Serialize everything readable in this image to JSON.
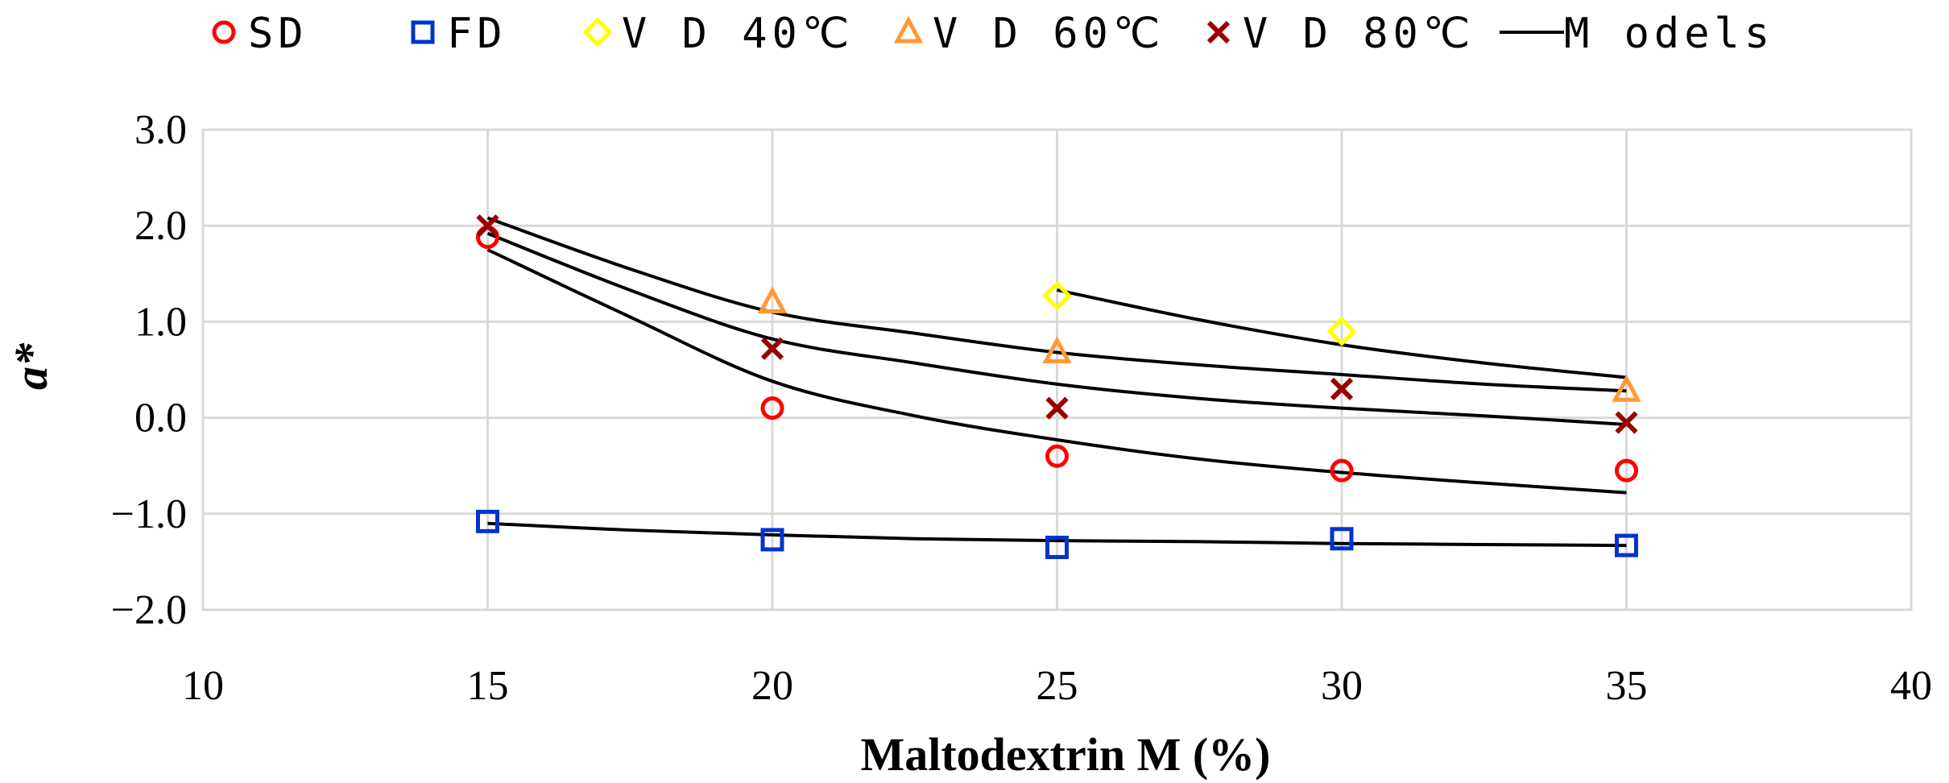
{
  "chart_data": {
    "type": "scatter",
    "title": "",
    "xlabel": "Maltodextrin M (%)",
    "ylabel": "a*",
    "xlim": [
      10,
      40
    ],
    "ylim": [
      -2.0,
      3.0
    ],
    "xticks": [
      10,
      15,
      20,
      25,
      30,
      35,
      40
    ],
    "xtick_labels": [
      "10",
      "15",
      "20",
      "25",
      "30",
      "35",
      "40"
    ],
    "yticks": [
      -2.0,
      -1.0,
      0.0,
      1.0,
      2.0,
      3.0
    ],
    "ytick_labels": [
      "−2.0",
      "−1.0",
      "0.0",
      "1.0",
      "2.0",
      "3.0"
    ],
    "grid": true,
    "legend_position": "top",
    "series": [
      {
        "name": "SD",
        "marker": "circle",
        "color": "#ff0000",
        "x": [
          15,
          20,
          25,
          30,
          35
        ],
        "values": [
          1.88,
          0.1,
          -0.4,
          -0.55,
          -0.55
        ]
      },
      {
        "name": "FD",
        "marker": "square",
        "color": "#0033cc",
        "x": [
          15,
          20,
          25,
          30,
          35
        ],
        "values": [
          -1.08,
          -1.27,
          -1.35,
          -1.26,
          -1.33
        ]
      },
      {
        "name": "V D  40℃",
        "marker": "diamond",
        "color": "#ffff00",
        "x": [
          25,
          30
        ],
        "values": [
          1.27,
          0.9
        ]
      },
      {
        "name": "V D  60℃",
        "marker": "triangle",
        "color": "#ff9933",
        "x": [
          20,
          25,
          35
        ],
        "values": [
          1.2,
          0.68,
          0.28
        ]
      },
      {
        "name": "V D  80℃",
        "marker": "cross",
        "color": "#990000",
        "x": [
          15,
          20,
          25,
          30,
          35
        ],
        "values": [
          2.0,
          0.72,
          0.1,
          0.3,
          -0.05
        ]
      }
    ],
    "models": {
      "name": "M odels",
      "color": "#000000",
      "lines": [
        {
          "fit_for": "V D  40℃",
          "x": [
            25,
            27.5,
            30,
            32.5,
            35
          ],
          "values": [
            1.33,
            1.02,
            0.76,
            0.57,
            0.42
          ]
        },
        {
          "fit_for": "V D  60℃",
          "x": [
            15,
            17.5,
            20,
            22.5,
            25,
            27.5,
            30,
            32.5,
            35
          ],
          "values": [
            2.08,
            1.55,
            1.1,
            0.88,
            0.68,
            0.55,
            0.45,
            0.35,
            0.28
          ]
        },
        {
          "fit_for": "V D  80℃",
          "x": [
            15,
            17.5,
            20,
            22.5,
            25,
            27.5,
            30,
            32.5,
            35
          ],
          "values": [
            1.92,
            1.33,
            0.82,
            0.57,
            0.35,
            0.2,
            0.1,
            0.02,
            -0.07
          ]
        },
        {
          "fit_for": "SD",
          "x": [
            15,
            17.5,
            20,
            22.5,
            25,
            27.5,
            30,
            32.5,
            35
          ],
          "values": [
            1.75,
            1.05,
            0.38,
            0.02,
            -0.23,
            -0.43,
            -0.57,
            -0.68,
            -0.78
          ]
        },
        {
          "fit_for": "FD",
          "x": [
            15,
            17.5,
            20,
            22.5,
            25,
            27.5,
            30,
            32.5,
            35
          ],
          "values": [
            -1.1,
            -1.17,
            -1.22,
            -1.26,
            -1.28,
            -1.29,
            -1.31,
            -1.32,
            -1.33
          ]
        }
      ]
    }
  }
}
